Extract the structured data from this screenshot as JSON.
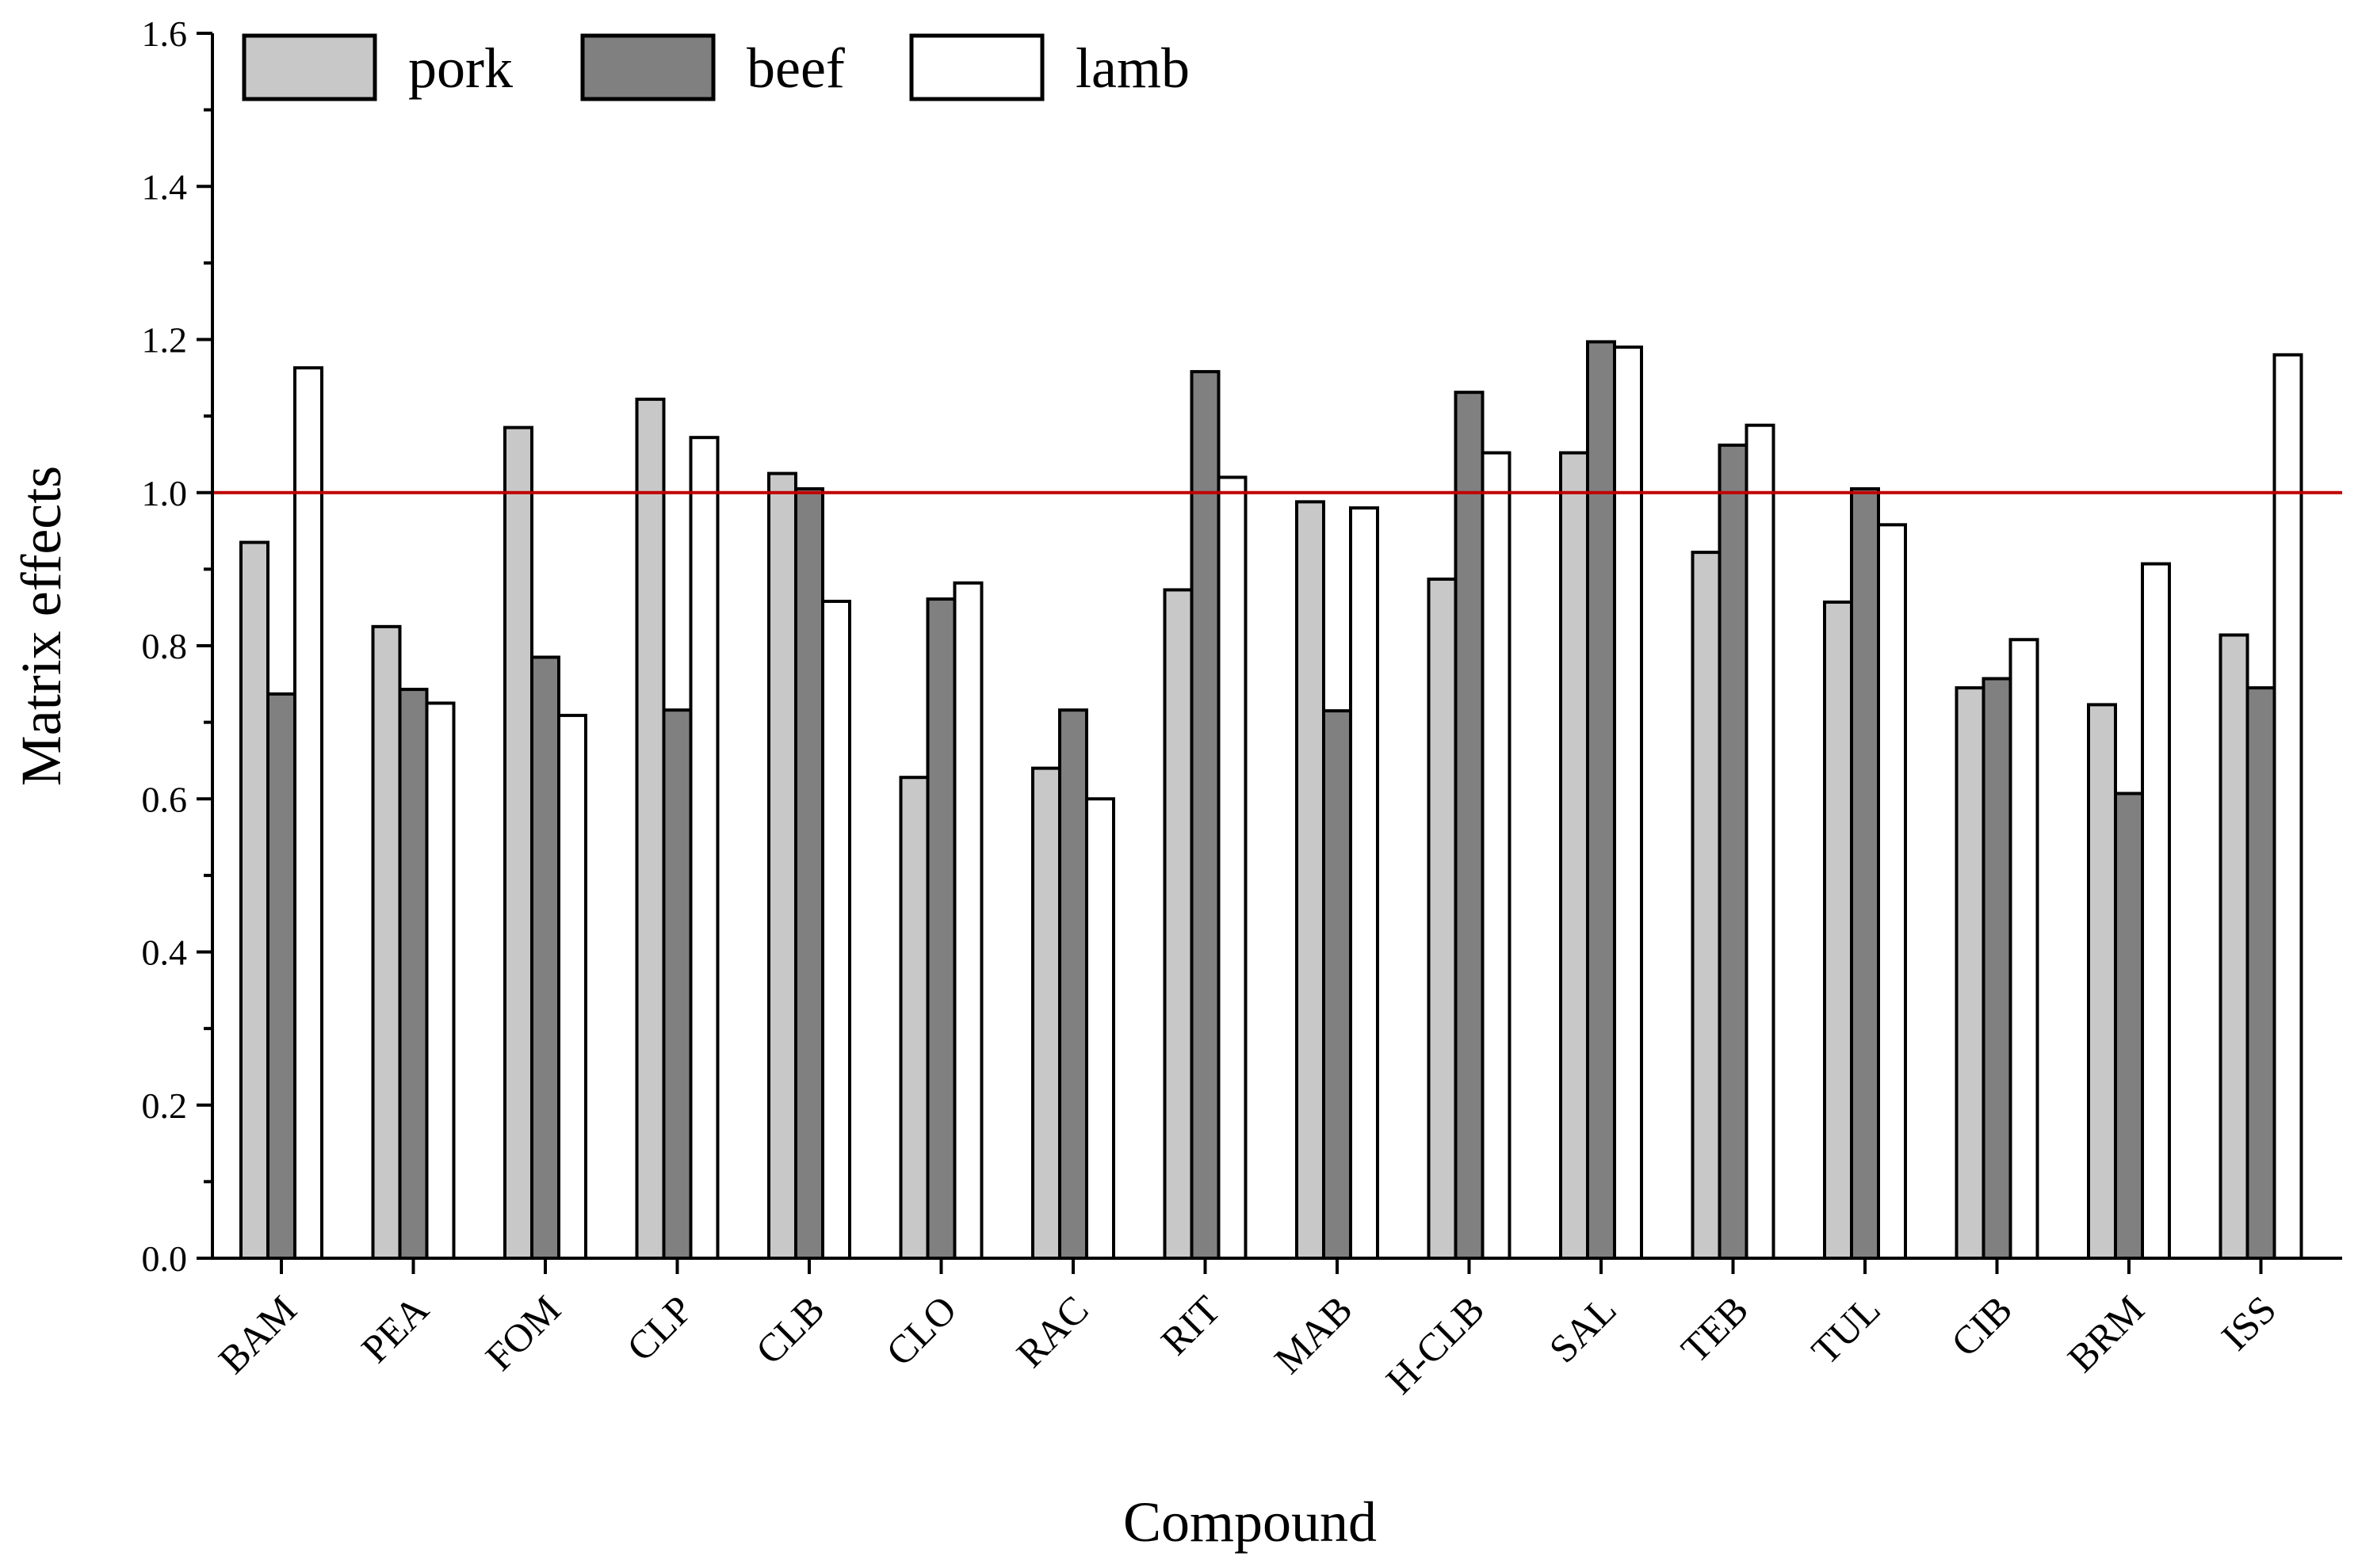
{
  "chart_data": {
    "type": "bar",
    "title": "",
    "xlabel": "Compound",
    "ylabel": "Matrix effects",
    "ylim": [
      0,
      1.6
    ],
    "yticks": [
      "0.0",
      "0.2",
      "0.4",
      "0.6",
      "0.8",
      "1.0",
      "1.2",
      "1.4",
      "1.6"
    ],
    "grid": false,
    "legend_position": "top-left",
    "reference_line": {
      "y": 1.0,
      "color": "#c00000"
    },
    "categories": [
      "BAM",
      "PEA",
      "FOM",
      "CLP",
      "CLB",
      "CLO",
      "RAC",
      "RIT",
      "MAB",
      "H-CLB",
      "SAL",
      "TEB",
      "TUL",
      "CIB",
      "BRM",
      "ISS"
    ],
    "series": [
      {
        "name": "pork",
        "color": "#c8c8c8",
        "values": [
          0.935,
          0.825,
          1.085,
          1.122,
          1.025,
          0.628,
          0.64,
          0.873,
          0.988,
          0.887,
          1.052,
          0.922,
          0.857,
          0.745,
          0.723,
          0.814
        ]
      },
      {
        "name": "beef",
        "color": "#808080",
        "values": [
          0.737,
          0.743,
          0.785,
          0.716,
          1.005,
          0.861,
          0.716,
          1.158,
          0.715,
          1.131,
          1.197,
          1.062,
          1.005,
          0.757,
          0.607,
          0.745
        ]
      },
      {
        "name": "lamb",
        "color": "#ffffff",
        "values": [
          1.163,
          0.725,
          0.709,
          1.072,
          0.858,
          0.882,
          0.6,
          1.02,
          0.98,
          1.052,
          1.19,
          1.088,
          0.958,
          0.808,
          0.907,
          1.18
        ]
      }
    ]
  }
}
